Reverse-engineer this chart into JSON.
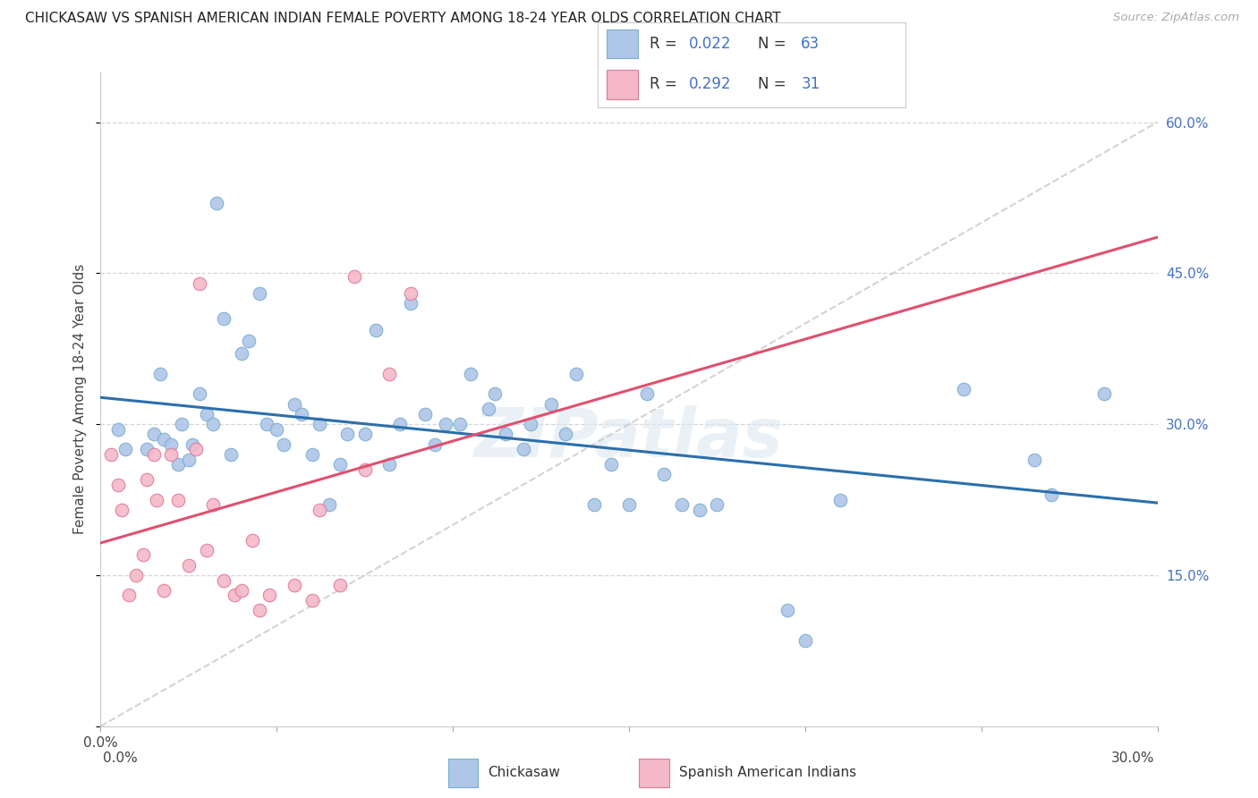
{
  "title": "CHICKASAW VS SPANISH AMERICAN INDIAN FEMALE POVERTY AMONG 18-24 YEAR OLDS CORRELATION CHART",
  "source": "Source: ZipAtlas.com",
  "ylabel": "Female Poverty Among 18-24 Year Olds",
  "xlim": [
    0.0,
    0.3
  ],
  "ylim": [
    0.0,
    0.65
  ],
  "xticks": [
    0.0,
    0.05,
    0.1,
    0.15,
    0.2,
    0.25,
    0.3
  ],
  "yticks": [
    0.0,
    0.15,
    0.3,
    0.45,
    0.6
  ],
  "chickasaw_color": "#aec6e8",
  "chickasaw_edge": "#7aadcf",
  "spanish_color": "#f4b8c8",
  "spanish_edge": "#e07898",
  "trend_blue": "#2c6fad",
  "trend_pink": "#e05070",
  "trend_dashed_color": "#c8c8c8",
  "right_y_color": "#4472c4",
  "R_chickasaw": 0.022,
  "N_chickasaw": 63,
  "R_spanish": 0.292,
  "N_spanish": 31,
  "legend_label_1": "Chickasaw",
  "legend_label_2": "Spanish American Indians",
  "watermark": "ZIPatlas",
  "chickasaw_x": [
    0.005,
    0.007,
    0.013,
    0.015,
    0.017,
    0.018,
    0.02,
    0.022,
    0.023,
    0.025,
    0.026,
    0.028,
    0.03,
    0.032,
    0.033,
    0.035,
    0.037,
    0.04,
    0.042,
    0.045,
    0.047,
    0.05,
    0.052,
    0.055,
    0.057,
    0.06,
    0.062,
    0.065,
    0.068,
    0.07,
    0.075,
    0.078,
    0.082,
    0.085,
    0.088,
    0.092,
    0.095,
    0.098,
    0.102,
    0.105,
    0.11,
    0.112,
    0.115,
    0.12,
    0.122,
    0.128,
    0.132,
    0.135,
    0.14,
    0.145,
    0.15,
    0.155,
    0.16,
    0.165,
    0.17,
    0.175,
    0.195,
    0.2,
    0.21,
    0.245,
    0.265,
    0.27,
    0.285
  ],
  "chickasaw_y": [
    0.295,
    0.275,
    0.275,
    0.29,
    0.35,
    0.285,
    0.28,
    0.26,
    0.3,
    0.265,
    0.28,
    0.33,
    0.31,
    0.3,
    0.52,
    0.405,
    0.27,
    0.37,
    0.383,
    0.43,
    0.3,
    0.295,
    0.28,
    0.32,
    0.31,
    0.27,
    0.3,
    0.22,
    0.26,
    0.29,
    0.29,
    0.393,
    0.26,
    0.3,
    0.42,
    0.31,
    0.28,
    0.3,
    0.3,
    0.35,
    0.315,
    0.33,
    0.29,
    0.275,
    0.3,
    0.32,
    0.29,
    0.35,
    0.22,
    0.26,
    0.22,
    0.33,
    0.25,
    0.22,
    0.215,
    0.22,
    0.115,
    0.085,
    0.225,
    0.335,
    0.265,
    0.23,
    0.33
  ],
  "spanish_x": [
    0.003,
    0.005,
    0.006,
    0.008,
    0.01,
    0.012,
    0.013,
    0.015,
    0.016,
    0.018,
    0.02,
    0.022,
    0.025,
    0.027,
    0.028,
    0.03,
    0.032,
    0.035,
    0.038,
    0.04,
    0.043,
    0.045,
    0.048,
    0.055,
    0.06,
    0.062,
    0.068,
    0.072,
    0.075,
    0.082,
    0.088
  ],
  "spanish_y": [
    0.27,
    0.24,
    0.215,
    0.13,
    0.15,
    0.17,
    0.245,
    0.27,
    0.225,
    0.135,
    0.27,
    0.225,
    0.16,
    0.275,
    0.44,
    0.175,
    0.22,
    0.145,
    0.13,
    0.135,
    0.185,
    0.115,
    0.13,
    0.14,
    0.125,
    0.215,
    0.14,
    0.447,
    0.255,
    0.35,
    0.43
  ]
}
